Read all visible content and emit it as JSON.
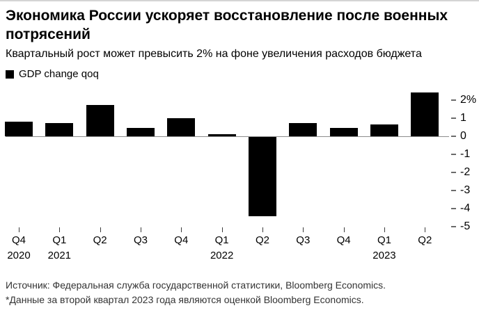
{
  "header": {
    "title": "Экономика России ускоряет восстановление после военных потрясений",
    "subtitle": "Квартальный рост может превысить 2% на фоне увеличения расходов бюджета"
  },
  "legend": {
    "label": "GDP change qoq",
    "swatch_color": "#000000"
  },
  "chart_data": {
    "type": "bar",
    "series_name": "GDP change qoq",
    "categories": [
      "Q4 2020",
      "Q1 2021",
      "Q2 2021",
      "Q3 2021",
      "Q4 2021",
      "Q1 2022",
      "Q2 2022",
      "Q3 2022",
      "Q4 2022",
      "Q1 2023",
      "Q2 2023"
    ],
    "x_tick_labels": [
      "Q4",
      "Q1",
      "Q2",
      "Q3",
      "Q4",
      "Q1",
      "Q2",
      "Q3",
      "Q4",
      "Q1",
      "Q2"
    ],
    "year_labels": [
      {
        "text": "2020",
        "index": 0
      },
      {
        "text": "2021",
        "index": 1
      },
      {
        "text": "2022",
        "index": 5
      },
      {
        "text": "2023",
        "index": 9
      }
    ],
    "values": [
      0.8,
      0.7,
      1.7,
      0.45,
      1.0,
      0.1,
      -4.4,
      0.7,
      0.45,
      0.65,
      2.4
    ],
    "y_ticks": [
      2,
      1,
      0,
      -1,
      -2,
      -3,
      -4,
      -5
    ],
    "y_tick_labels": [
      "2%",
      "1",
      "0",
      "-1",
      "-2",
      "-3",
      "-4",
      "-5"
    ],
    "ylim": [
      -5,
      2.6
    ],
    "xlabel": "",
    "ylabel": "",
    "grid": false,
    "legend_position": "top-left",
    "bar_color": "#000000",
    "axis_line_color": "#8c8c8c"
  },
  "footer": {
    "source": "Источник: Федеральная служба государственной статистики, Bloomberg Economics.",
    "note": "*Данные за второй квартал 2023 года являются оценкой Bloomberg Economics."
  }
}
